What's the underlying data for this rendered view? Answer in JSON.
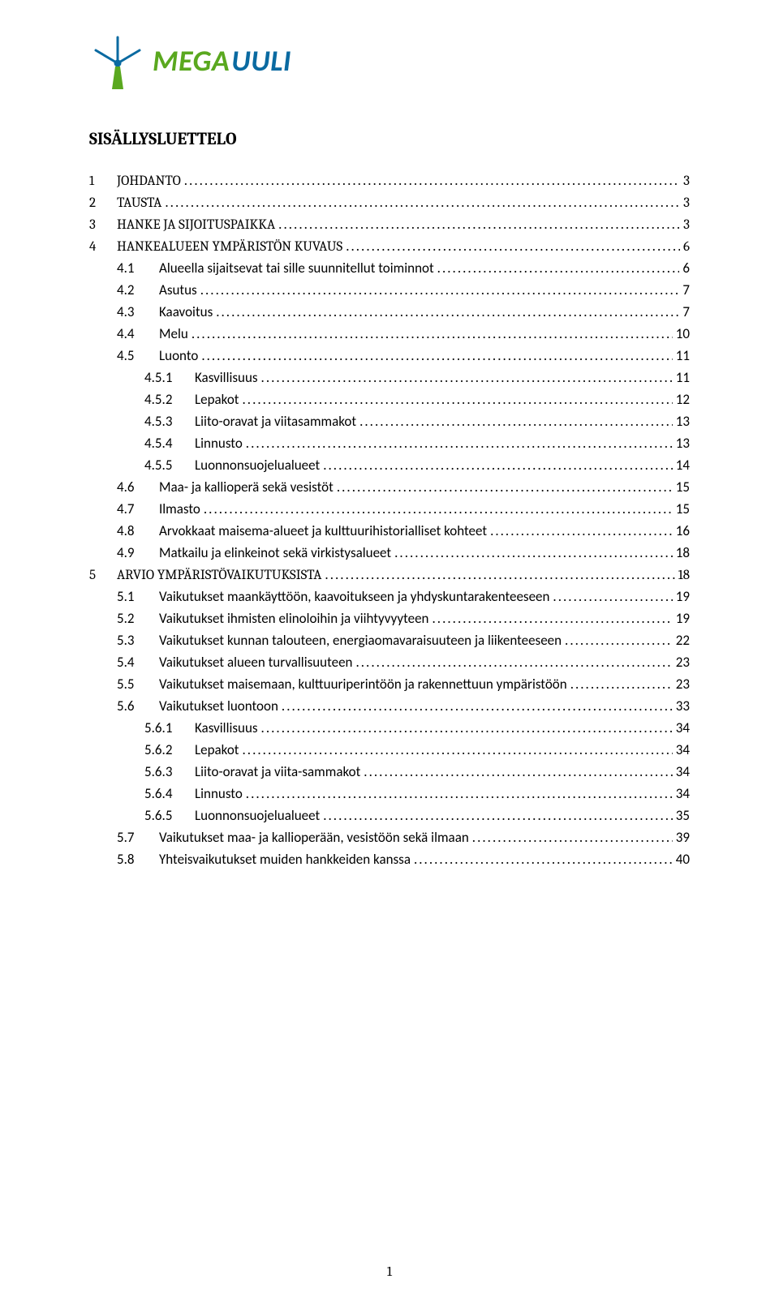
{
  "logo": {
    "text_left": "MEGA",
    "text_right": "UULI",
    "color_left": "#5aa81f",
    "color_right": "#0a6aa1",
    "blade_color": "#0a6aa1",
    "tower_color": "#5aa81f"
  },
  "title": "SISÄLLYSLUETTELO",
  "page_number": "1",
  "toc": [
    {
      "level": 1,
      "num": "1",
      "label": "JOHDANTO",
      "page": "3"
    },
    {
      "level": 1,
      "num": "2",
      "label": "TAUSTA",
      "page": "3"
    },
    {
      "level": 1,
      "num": "3",
      "label": "HANKE JA SIJOITUSPAIKKA",
      "page": "3"
    },
    {
      "level": 1,
      "num": "4",
      "label": "HANKEALUEEN YMPÄRISTÖN KUVAUS",
      "page": "6"
    },
    {
      "level": 2,
      "num": "4.1",
      "label": "Alueella sijaitsevat tai sille suunnitellut toiminnot",
      "page": "6"
    },
    {
      "level": 2,
      "num": "4.2",
      "label": "Asutus",
      "page": "7"
    },
    {
      "level": 2,
      "num": "4.3",
      "label": "Kaavoitus",
      "page": "7"
    },
    {
      "level": 2,
      "num": "4.4",
      "label": "Melu",
      "page": "10"
    },
    {
      "level": 2,
      "num": "4.5",
      "label": "Luonto",
      "page": "11"
    },
    {
      "level": 3,
      "num": "4.5.1",
      "label": "Kasvillisuus",
      "page": "11"
    },
    {
      "level": 3,
      "num": "4.5.2",
      "label": "Lepakot",
      "page": "12"
    },
    {
      "level": 3,
      "num": "4.5.3",
      "label": "Liito-oravat ja viitasammakot",
      "page": "13"
    },
    {
      "level": 3,
      "num": "4.5.4",
      "label": "Linnusto",
      "page": "13"
    },
    {
      "level": 3,
      "num": "4.5.5",
      "label": "Luonnonsuojelualueet",
      "page": "14"
    },
    {
      "level": 2,
      "num": "4.6",
      "label": "Maa- ja kallioperä sekä vesistöt",
      "page": "15"
    },
    {
      "level": 2,
      "num": "4.7",
      "label": "Ilmasto",
      "page": "15"
    },
    {
      "level": 2,
      "num": "4.8",
      "label": "Arvokkaat maisema-alueet ja kulttuurihistorialliset kohteet",
      "page": "16"
    },
    {
      "level": 2,
      "num": "4.9",
      "label": "Matkailu ja elinkeinot sekä virkistysalueet",
      "page": "18"
    },
    {
      "level": 1,
      "num": "5",
      "label": "ARVIO YMPÄRISTÖVAIKUTUKSISTA",
      "page": "18"
    },
    {
      "level": 2,
      "num": "5.1",
      "label": "Vaikutukset maankäyttöön, kaavoitukseen ja yhdyskuntarakenteeseen",
      "page": "19"
    },
    {
      "level": 2,
      "num": "5.2",
      "label": "Vaikutukset ihmisten elinoloihin ja viihtyvyyteen",
      "page": "19"
    },
    {
      "level": 2,
      "num": "5.3",
      "label": "Vaikutukset kunnan talouteen, energiaomavaraisuuteen ja liikenteeseen",
      "page": "22"
    },
    {
      "level": 2,
      "num": "5.4",
      "label": "Vaikutukset alueen turvallisuuteen",
      "page": "23"
    },
    {
      "level": 2,
      "num": "5.5",
      "label": "Vaikutukset maisemaan, kulttuuriperintöön ja rakennettuun ympäristöön",
      "page": "23"
    },
    {
      "level": 2,
      "num": "5.6",
      "label": "Vaikutukset luontoon",
      "page": "33"
    },
    {
      "level": 3,
      "num": "5.6.1",
      "label": "Kasvillisuus",
      "page": "34"
    },
    {
      "level": 3,
      "num": "5.6.2",
      "label": "Lepakot",
      "page": "34"
    },
    {
      "level": 3,
      "num": "5.6.3",
      "label": "Liito-oravat ja viita-sammakot",
      "page": "34"
    },
    {
      "level": 3,
      "num": "5.6.4",
      "label": "Linnusto",
      "page": "34"
    },
    {
      "level": 3,
      "num": "5.6.5",
      "label": "Luonnonsuojelualueet",
      "page": "35"
    },
    {
      "level": 2,
      "num": "5.7",
      "label": "Vaikutukset maa- ja kallioperään, vesistöön sekä ilmaan",
      "page": "39"
    },
    {
      "level": 2,
      "num": "5.8",
      "label": "Yhteisvaikutukset muiden hankkeiden kanssa",
      "page": "40"
    }
  ],
  "typography": {
    "title_fontsize": 21,
    "row_fontsize": 17,
    "title_font": "Cambria",
    "l1_font": "Cambria",
    "l2_font": "Calibri",
    "l3_font": "Calibri"
  },
  "colors": {
    "background": "#ffffff",
    "text": "#000000"
  }
}
